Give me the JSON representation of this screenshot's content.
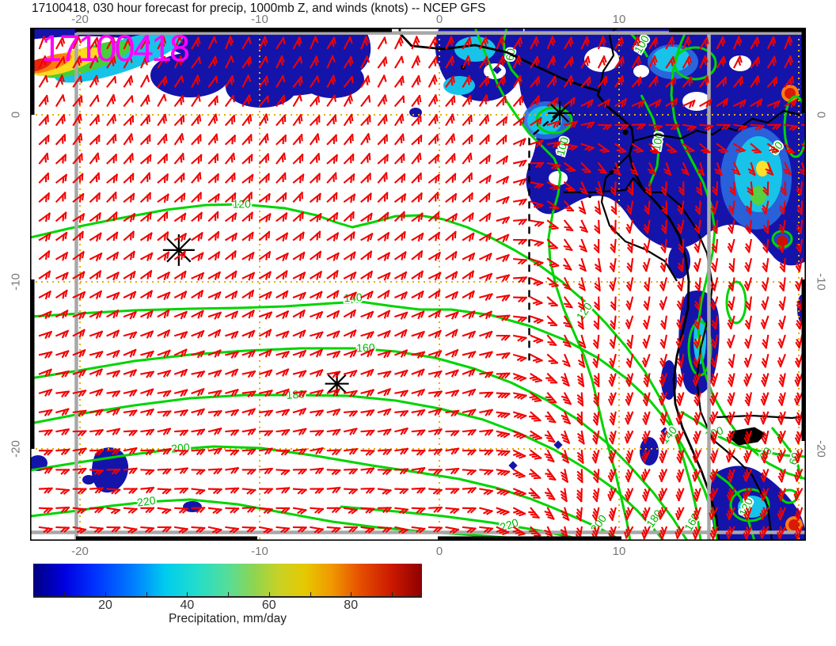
{
  "title": "17100418, 030 hour forecast for precip, 1000mb Z, and winds (knots) -- NCEP GFS",
  "stamp": "17100418",
  "axes": {
    "x": {
      "tick_labels": [
        "-20",
        "-10",
        "0",
        "10"
      ],
      "tick_values": [
        -20,
        -10,
        0,
        10
      ],
      "range": [
        -22.8,
        20.4
      ]
    },
    "y": {
      "tick_labels": [
        "0",
        "-10",
        "-20"
      ],
      "tick_values": [
        0,
        -10,
        -20
      ],
      "range": [
        5.2,
        -25.6
      ]
    }
  },
  "colorbar": {
    "label": "Precipitation, mm/day",
    "tick_values": [
      20,
      40,
      60,
      80
    ],
    "min": 0,
    "max": 100,
    "colormap": "jet"
  },
  "chart_data": {
    "type": "heatmap",
    "subtype": "weather-forecast-map",
    "title": "17100418, 030 hour forecast for precip, 1000mb Z, and winds (knots) -- NCEP GFS",
    "model": "NCEP GFS",
    "init_time_stamp": "17100418",
    "forecast_hour": 30,
    "fields": [
      "precipitation shading, mm/day (jet colormap)",
      "1000mb geopotential height Z, green contours",
      "wind barbs in knots, red"
    ],
    "lon_range": [
      -22.8,
      20.4
    ],
    "lat_range": [
      -25.6,
      5.2
    ],
    "grid_lons": [
      -20,
      -10,
      0,
      10,
      20
    ],
    "grid_lats": [
      0,
      -10,
      -20
    ],
    "height_contour_levels_labeled": [
      60,
      80,
      100,
      120,
      140,
      160,
      180,
      200,
      220
    ],
    "height_contour_labels": [
      {
        "value": "120",
        "lon": -11.0,
        "lat": -5.4
      },
      {
        "value": "140",
        "lon": -4.8,
        "lat": -11.0
      },
      {
        "value": "160",
        "lon": -4.1,
        "lat": -14.0
      },
      {
        "value": "180",
        "lon": -8.0,
        "lat": -16.8
      },
      {
        "value": "200",
        "lon": -14.4,
        "lat": -20.0
      },
      {
        "value": "220",
        "lon": -16.3,
        "lat": -23.2
      },
      {
        "value": "220",
        "lon": 3.9,
        "lat": -24.6
      },
      {
        "value": "200",
        "lon": 8.9,
        "lat": -24.5
      },
      {
        "value": "180",
        "lon": 12.0,
        "lat": -24.2
      },
      {
        "value": "160",
        "lon": 14.1,
        "lat": -24.4
      },
      {
        "value": "140",
        "lon": 12.8,
        "lat": -19.2
      },
      {
        "value": "120",
        "lon": 17.1,
        "lat": -23.5
      },
      {
        "value": "120",
        "lon": 8.1,
        "lat": -11.8
      },
      {
        "value": "100",
        "lon": 6.9,
        "lat": -1.9
      },
      {
        "value": "100",
        "lon": 12.2,
        "lat": -1.6
      },
      {
        "value": "100",
        "lon": 15.3,
        "lat": -19.1
      },
      {
        "value": "100",
        "lon": 11.3,
        "lat": 4.2
      },
      {
        "value": "80",
        "lon": 18.8,
        "lat": -2.0
      },
      {
        "value": "80",
        "lon": 18.2,
        "lat": -20.3
      },
      {
        "value": "60",
        "lon": 4.0,
        "lat": 3.6
      },
      {
        "value": "60",
        "lon": 19.8,
        "lat": -20.6
      }
    ],
    "markers": [
      {
        "symbol": "asterisk",
        "lon": 6.7,
        "lat": 0.1
      },
      {
        "symbol": "asterisk",
        "lon": -14.5,
        "lat": -8.1
      },
      {
        "symbol": "asterisk",
        "lon": -5.7,
        "lat": -16.1
      }
    ],
    "track_dashed_line": [
      [
        6.6,
        0.1
      ],
      [
        5.0,
        -1.4
      ],
      [
        5.0,
        -15.0
      ]
    ],
    "gray_reference_lines": {
      "lons": [
        -20.2,
        15.0
      ],
      "lats": [
        4.9,
        -25.0
      ]
    },
    "wind": {
      "units": "knots",
      "color": "#f20000"
    },
    "colors": {
      "wind_barbs": "#f20000",
      "height_contours": "#00d400",
      "contour_labels": "#00b400",
      "gridlines": "#e2b007",
      "stamp": "#ff00ff",
      "coastline": "#000000",
      "reference_lines": "#a8a8a8",
      "precip_heavy_core": "#e82610",
      "precip_base": "#1414ab"
    }
  }
}
